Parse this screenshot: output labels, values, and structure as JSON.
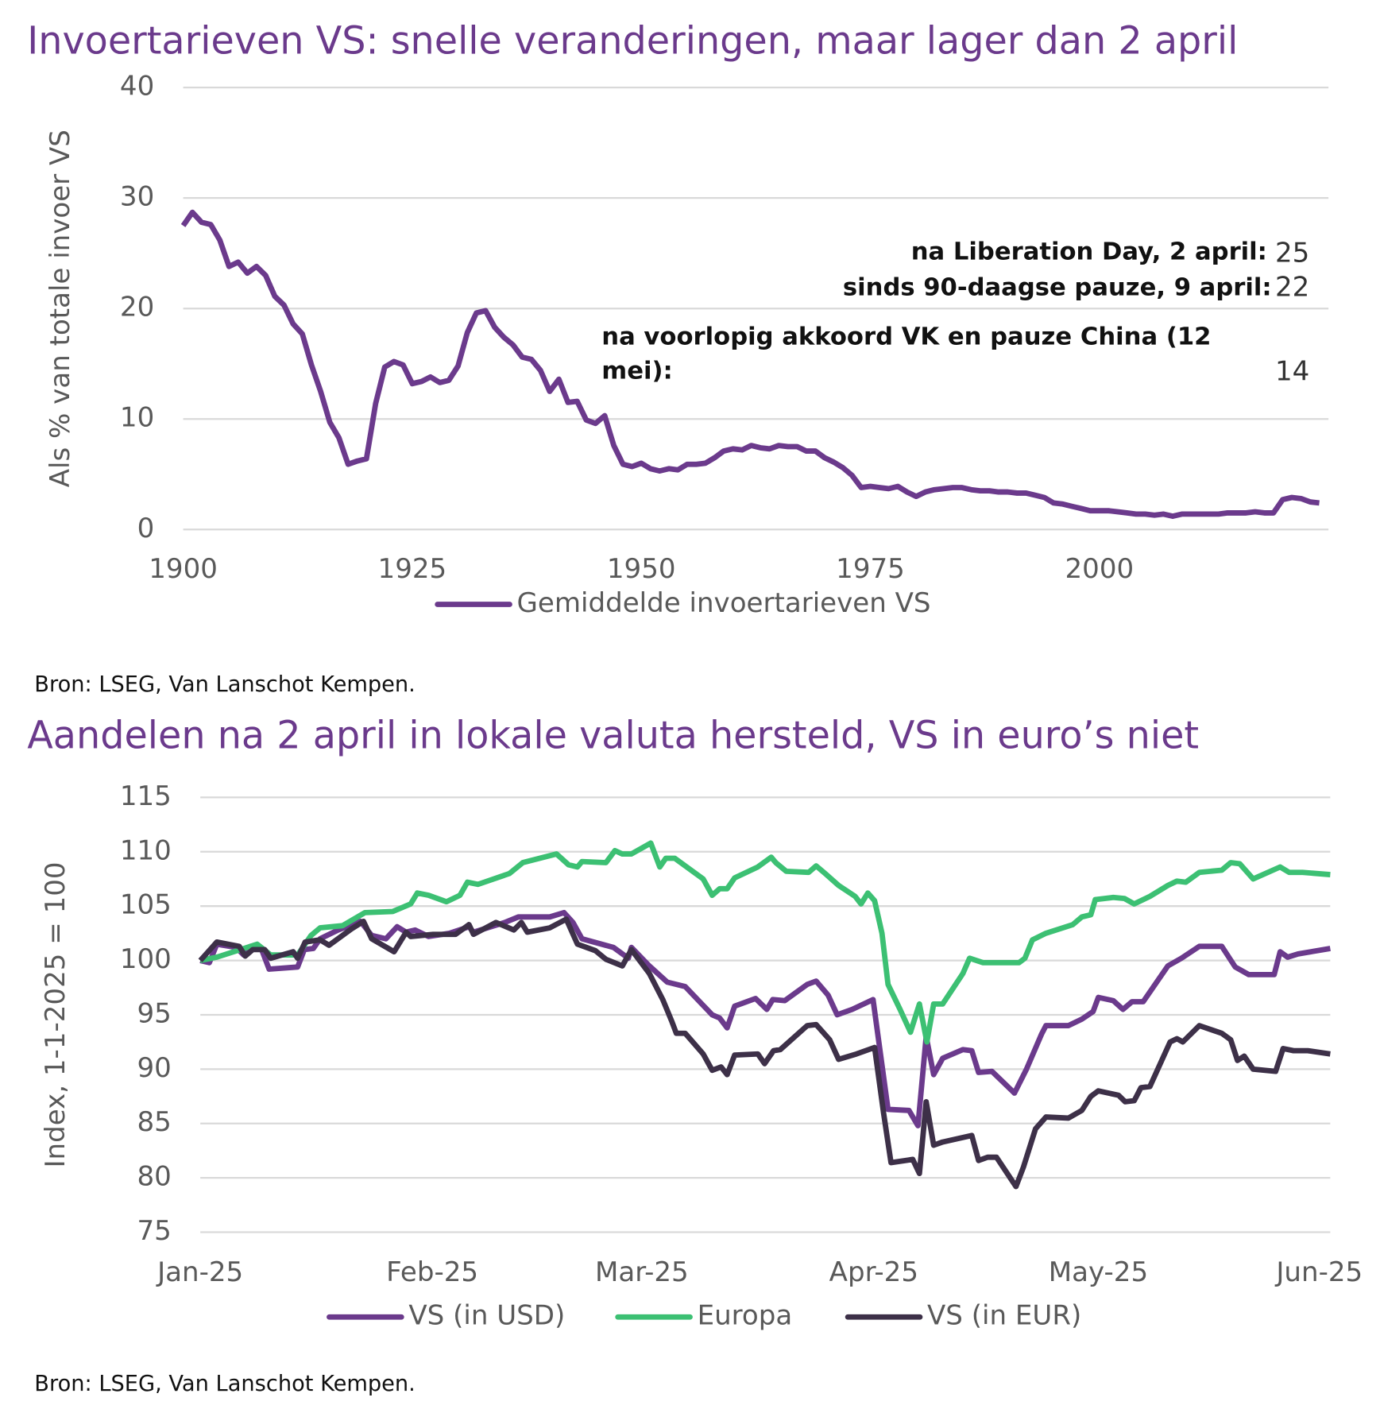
{
  "chart_data": [
    {
      "type": "line",
      "title": "Invoertarieven VS: snelle veranderingen, maar lager dan 2 april",
      "ylabel": "Als % van totale invoer VS",
      "source": "Bron: LSEG, Van Lanschot Kempen.",
      "xlim": [
        1900,
        2025
      ],
      "xticks": [
        1900,
        1925,
        1950,
        1975,
        2000
      ],
      "ylim": [
        0,
        40
      ],
      "yticks": [
        0,
        10,
        20,
        30,
        40
      ],
      "grid": true,
      "annotations": [
        {
          "text": "na Liberation Day, 2 april:",
          "value": 25
        },
        {
          "text": "sinds 90-daagse pauze, 9 april:",
          "value": 22
        },
        {
          "text": "na voorlopig akkoord VK en pauze China (12 mei):",
          "value": 14
        }
      ],
      "series": [
        {
          "name": "Gemiddelde invoertarieven VS",
          "color": "#6b3a8c",
          "x": [
            1900,
            1901,
            1902,
            1903,
            1904,
            1905,
            1906,
            1907,
            1908,
            1909,
            1910,
            1911,
            1912,
            1913,
            1914,
            1915,
            1916,
            1917,
            1918,
            1919,
            1920,
            1921,
            1922,
            1923,
            1924,
            1925,
            1926,
            1927,
            1928,
            1929,
            1930,
            1931,
            1932,
            1933,
            1934,
            1935,
            1936,
            1937,
            1938,
            1939,
            1940,
            1941,
            1942,
            1943,
            1944,
            1945,
            1946,
            1947,
            1948,
            1949,
            1950,
            1951,
            1952,
            1953,
            1954,
            1955,
            1956,
            1957,
            1958,
            1959,
            1960,
            1961,
            1962,
            1963,
            1964,
            1965,
            1966,
            1967,
            1968,
            1969,
            1970,
            1971,
            1972,
            1973,
            1974,
            1975,
            1976,
            1977,
            1978,
            1979,
            1980,
            1981,
            1982,
            1983,
            1984,
            1985,
            1986,
            1987,
            1988,
            1989,
            1990,
            1991,
            1992,
            1993,
            1994,
            1995,
            1996,
            1997,
            1998,
            1999,
            2000,
            2001,
            2002,
            2003,
            2004,
            2005,
            2006,
            2007,
            2008,
            2009,
            2010,
            2011,
            2012,
            2013,
            2014,
            2015,
            2016,
            2017,
            2018,
            2019,
            2020,
            2021,
            2022,
            2023,
            2024
          ],
          "values": [
            27.5,
            28.7,
            27.8,
            27.6,
            26.2,
            23.8,
            24.2,
            23.2,
            23.8,
            23.0,
            21.1,
            20.3,
            18.6,
            17.7,
            14.9,
            12.5,
            9.7,
            8.3,
            5.9,
            6.2,
            6.4,
            11.4,
            14.7,
            15.2,
            14.9,
            13.2,
            13.4,
            13.8,
            13.3,
            13.5,
            14.8,
            17.8,
            19.6,
            19.8,
            18.3,
            17.4,
            16.7,
            15.6,
            15.4,
            14.4,
            12.5,
            13.6,
            11.5,
            11.6,
            9.9,
            9.6,
            10.3,
            7.6,
            5.9,
            5.7,
            6.0,
            5.5,
            5.3,
            5.5,
            5.4,
            5.9,
            5.9,
            6.0,
            6.5,
            7.1,
            7.3,
            7.2,
            7.6,
            7.4,
            7.3,
            7.6,
            7.5,
            7.5,
            7.1,
            7.1,
            6.5,
            6.1,
            5.6,
            4.9,
            3.8,
            3.9,
            3.8,
            3.7,
            3.9,
            3.4,
            3.0,
            3.4,
            3.6,
            3.7,
            3.8,
            3.8,
            3.6,
            3.5,
            3.5,
            3.4,
            3.4,
            3.3,
            3.3,
            3.1,
            2.9,
            2.4,
            2.3,
            2.1,
            1.9,
            1.7,
            1.7,
            1.7,
            1.6,
            1.5,
            1.4,
            1.4,
            1.3,
            1.4,
            1.2,
            1.4,
            1.4,
            1.4,
            1.4,
            1.4,
            1.5,
            1.5,
            1.5,
            1.6,
            1.5,
            1.5,
            2.7,
            2.9,
            2.8,
            2.5,
            2.4
          ]
        }
      ]
    },
    {
      "type": "line",
      "title": "Aandelen na 2 april in lokale valuta hersteld, VS in euro’s niet",
      "ylabel": "Index, 1-1-2025 = 100",
      "source": "Bron: LSEG, Van Lanschot Kempen.",
      "xlim": [
        0,
        151
      ],
      "xticks": [
        {
          "value": 0,
          "label": "Jan-25"
        },
        {
          "value": 31,
          "label": "Feb-25"
        },
        {
          "value": 59,
          "label": "Mar-25"
        },
        {
          "value": 90,
          "label": "Apr-25"
        },
        {
          "value": 120,
          "label": "May-25"
        },
        {
          "value": 151,
          "label": "Jun-25"
        }
      ],
      "ylim": [
        75,
        115
      ],
      "yticks": [
        75,
        80,
        85,
        90,
        95,
        100,
        105,
        110,
        115
      ],
      "grid": true,
      "series": [
        {
          "name": "VS (in USD)",
          "color": "#6b3a8c",
          "x": [
            0,
            1.2,
            2.2,
            4.8,
            5.8,
            6.7,
            8.2,
            9.2,
            13.0,
            13.9,
            15.1,
            16.0,
            18.4,
            21.4,
            22.9,
            24.8,
            26.3,
            27.5,
            28.7,
            30.5,
            33.3,
            35.9,
            36.5,
            40.7,
            42.5,
            46.7,
            48.6,
            49.8,
            51.0,
            55.2,
            57.2,
            57.6,
            60.0,
            62.4,
            64.8,
            68.4,
            69.4,
            70.4,
            71.4,
            74.2,
            75.7,
            76.5,
            78.1,
            81.1,
            82.3,
            83.9,
            85.1,
            87.1,
            89.9,
            91.9,
            94.7,
            95.9,
            97.0,
            98.0,
            99.2,
            101.9,
            103.1,
            104.0,
            105.8,
            108.8,
            110.4,
            112.4,
            113.0,
            116.0,
            117.8,
            119.3,
            120.0,
            122.0,
            123.3,
            124.5,
            126.0,
            129.3,
            131.1,
            133.5,
            136.5,
            138.3,
            140.1,
            143.5,
            144.3,
            145.3,
            146.7,
            151.0
          ],
          "values": [
            100,
            99.8,
            101.5,
            101.2,
            100.5,
            101.3,
            101.0,
            99.2,
            99.4,
            101.0,
            101.1,
            102.0,
            102.8,
            103.6,
            102.3,
            102.0,
            103.1,
            102.6,
            102.8,
            102.2,
            102.5,
            103.1,
            102.6,
            103.5,
            104.0,
            104.0,
            104.4,
            103.5,
            102.0,
            101.2,
            100.2,
            101.2,
            99.5,
            98.0,
            97.6,
            95.0,
            94.7,
            93.8,
            95.8,
            96.5,
            95.5,
            96.4,
            96.3,
            97.8,
            98.1,
            96.8,
            95.0,
            95.5,
            96.4,
            86.3,
            86.2,
            84.8,
            93.0,
            89.5,
            91.0,
            91.8,
            91.7,
            89.7,
            89.8,
            87.8,
            90.0,
            93.2,
            94.0,
            94.0,
            94.6,
            95.3,
            96.6,
            96.3,
            95.5,
            96.2,
            96.2,
            99.5,
            100.2,
            101.3,
            101.3,
            99.4,
            98.7,
            98.7,
            100.8,
            100.3,
            100.6,
            101.1
          ]
        },
        {
          "name": "Europa",
          "color": "#3cc073",
          "x": [
            0,
            2.2,
            7.6,
            9.4,
            13.0,
            14.8,
            16.0,
            19.0,
            22.0,
            25.7,
            28.1,
            29.0,
            30.5,
            32.9,
            34.7,
            35.7,
            37.1,
            41.3,
            43.1,
            47.6,
            49.2,
            50.4,
            51.0,
            54.2,
            55.4,
            56.4,
            57.6,
            60.2,
            61.4,
            62.2,
            63.4,
            67.2,
            68.4,
            69.4,
            70.4,
            71.4,
            74.5,
            76.3,
            76.9,
            78.3,
            81.3,
            82.3,
            83.5,
            85.3,
            87.5,
            88.3,
            89.2,
            90.1,
            91.1,
            91.9,
            93.5,
            94.9,
            96.1,
            97.1,
            98.0,
            99.2,
            101.9,
            102.8,
            104.6,
            109.4,
            110.2,
            111.2,
            113.0,
            116.6,
            117.8,
            119.0,
            119.6,
            122.0,
            123.5,
            124.8,
            126.9,
            129.3,
            130.5,
            131.7,
            133.5,
            136.5,
            137.7,
            138.9,
            140.7,
            144.3,
            145.5,
            147.3,
            151.0
          ],
          "values": [
            100,
            100.3,
            101.5,
            100.5,
            100.5,
            102.3,
            103.0,
            103.2,
            104.4,
            104.5,
            105.2,
            106.2,
            106.0,
            105.4,
            106.0,
            107.2,
            107.0,
            108.0,
            109.0,
            109.8,
            108.8,
            108.6,
            109.1,
            109.0,
            110.1,
            109.8,
            109.8,
            110.8,
            108.6,
            109.4,
            109.4,
            107.5,
            106.0,
            106.6,
            106.6,
            107.6,
            108.6,
            109.5,
            109.0,
            108.2,
            108.1,
            108.7,
            108.0,
            106.9,
            105.9,
            105.2,
            106.2,
            105.5,
            102.5,
            97.8,
            95.5,
            93.4,
            96.0,
            92.5,
            96.0,
            96.0,
            98.8,
            100.2,
            99.8,
            99.8,
            100.2,
            101.9,
            102.5,
            103.3,
            104.0,
            104.2,
            105.6,
            105.8,
            105.7,
            105.2,
            105.9,
            106.9,
            107.3,
            107.2,
            108.1,
            108.3,
            109.0,
            108.9,
            107.5,
            108.6,
            108.1,
            108.1,
            107.9
          ]
        },
        {
          "name": "VS (in EUR)",
          "color": "#3d3048",
          "x": [
            0,
            2.2,
            5.2,
            6.0,
            7.0,
            8.6,
            9.4,
            12.4,
            13.0,
            14.0,
            16.0,
            17.2,
            20.2,
            21.8,
            22.9,
            25.9,
            27.5,
            28.1,
            31.1,
            34.1,
            35.9,
            36.5,
            39.5,
            41.9,
            42.9,
            43.7,
            46.7,
            48.9,
            50.4,
            52.8,
            54.2,
            56.4,
            57.6,
            60.0,
            61.8,
            63.0,
            63.6,
            64.8,
            67.2,
            68.4,
            69.6,
            70.4,
            71.4,
            74.5,
            75.4,
            76.6,
            77.5,
            81.1,
            82.3,
            84.1,
            85.3,
            87.7,
            90.1,
            91.3,
            92.3,
            95.2,
            96.1,
            97.0,
            98.0,
            99.2,
            103.1,
            104.0,
            105.2,
            106.4,
            109.0,
            110.0,
            111.6,
            113.0,
            116.0,
            117.8,
            119.0,
            120.0,
            122.7,
            123.6,
            124.8,
            125.7,
            126.9,
            129.6,
            130.5,
            131.3,
            133.5,
            136.5,
            137.7,
            138.6,
            139.5,
            140.7,
            143.7,
            144.7,
            146.1,
            148.0,
            151.0
          ],
          "values": [
            100,
            101.7,
            101.3,
            100.4,
            101.0,
            101.0,
            100.2,
            100.8,
            100.2,
            101.7,
            101.9,
            101.4,
            102.9,
            103.6,
            102.0,
            100.8,
            102.6,
            102.2,
            102.4,
            102.4,
            103.3,
            102.4,
            103.5,
            102.8,
            103.5,
            102.6,
            103.0,
            103.8,
            101.5,
            100.9,
            100.1,
            99.5,
            101.0,
            98.8,
            96.4,
            94.4,
            93.3,
            93.3,
            91.4,
            89.9,
            90.2,
            89.5,
            91.3,
            91.4,
            90.5,
            91.7,
            91.8,
            94.0,
            94.1,
            92.7,
            90.9,
            91.4,
            92.0,
            86.0,
            81.4,
            81.7,
            80.4,
            87.0,
            83.0,
            83.3,
            83.9,
            81.6,
            81.9,
            81.9,
            79.2,
            81.0,
            84.5,
            85.6,
            85.5,
            86.2,
            87.5,
            88.0,
            87.6,
            87.0,
            87.1,
            88.3,
            88.4,
            92.5,
            92.8,
            92.5,
            94.0,
            93.3,
            92.7,
            90.8,
            91.2,
            90.0,
            89.8,
            91.9,
            91.7,
            91.7,
            91.4
          ]
        }
      ]
    }
  ]
}
